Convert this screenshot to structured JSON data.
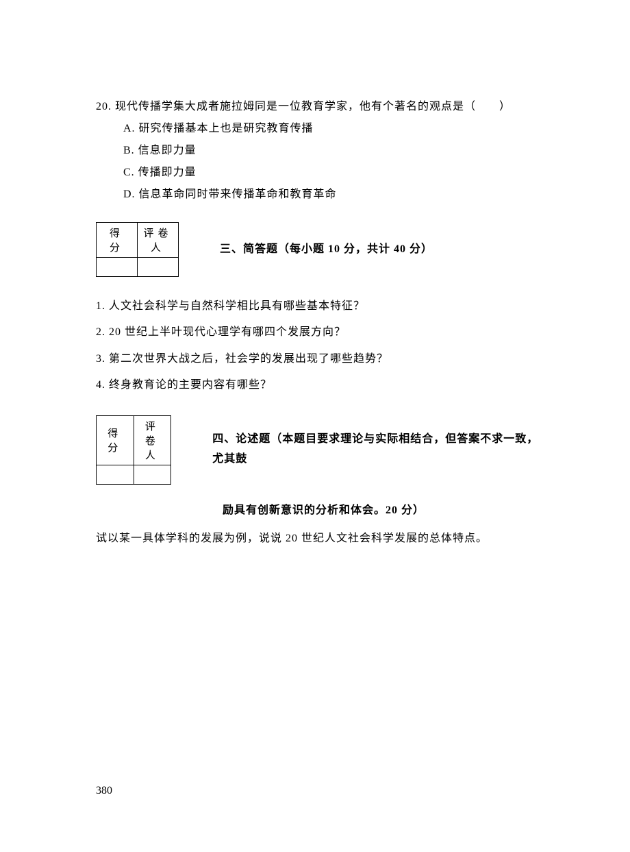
{
  "q20": {
    "text": "20. 现代传播学集大成者施拉姆同是一位教育学家，他有个著名的观点是（　　）",
    "optionA": "A. 研究传播基本上也是研究教育传播",
    "optionB": "B. 信息即力量",
    "optionC": "C. 传播即力量",
    "optionD": "D. 信息革命同时带来传播革命和教育革命"
  },
  "scoreBox": {
    "header1": "得 分",
    "header2": "评卷人"
  },
  "section3": {
    "title": "三、简答题（每小题 10 分，共计 40 分）",
    "q1": "1. 人文社会科学与自然科学相比具有哪些基本特征？",
    "q2": "2. 20 世纪上半叶现代心理学有哪四个发展方向？",
    "q3": "3. 第二次世界大战之后，社会学的发展出现了哪些趋势？",
    "q4": "4. 终身教育论的主要内容有哪些？"
  },
  "section4": {
    "titleLine1": "四、论述题（本题目要求理论与实际相结合，但答案不求一致，尤其鼓",
    "titleLine2": "励具有创新意识的分析和体会。20 分）",
    "question": "试以某一具体学科的发展为例，说说 20 世纪人文社会科学发展的总体特点。"
  },
  "pageNumber": "380"
}
